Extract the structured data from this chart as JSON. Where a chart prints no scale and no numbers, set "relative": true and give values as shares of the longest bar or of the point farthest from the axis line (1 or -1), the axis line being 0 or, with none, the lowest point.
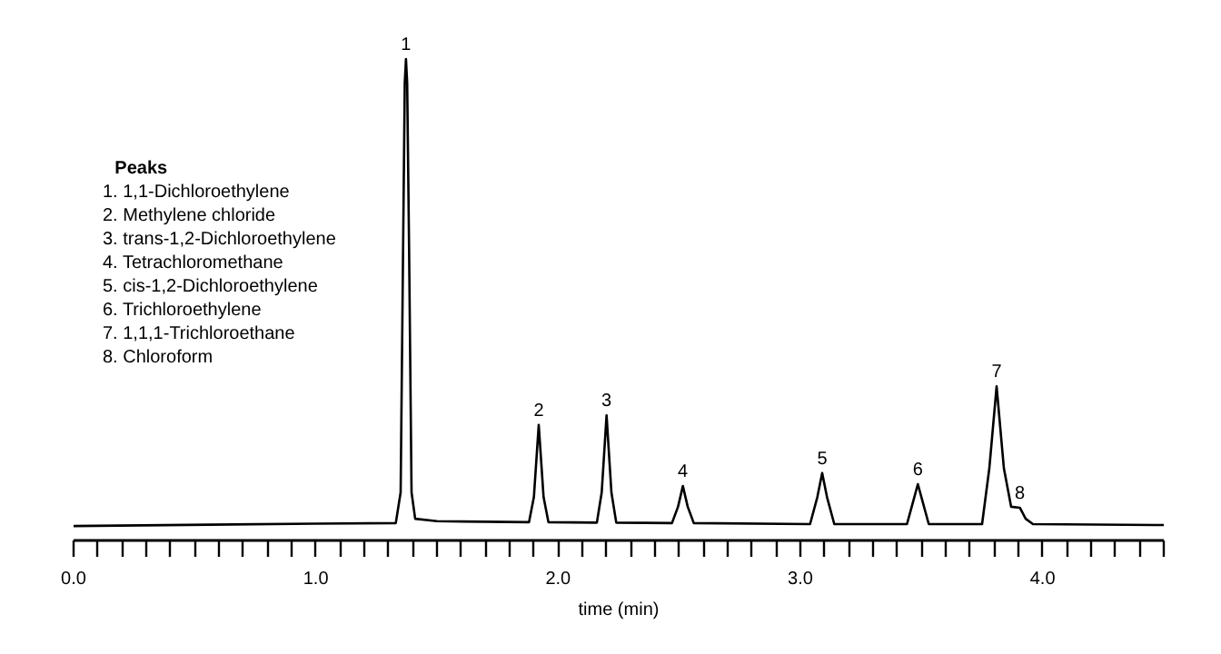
{
  "chart_data": {
    "type": "line",
    "relative": true,
    "xlabel": "time (min)",
    "legend_title": "Peaks",
    "xlim": [
      0,
      4.5
    ],
    "xticks": [
      {
        "value": 0.0,
        "label": "0.0"
      },
      {
        "value": 0.1,
        "label": null
      },
      {
        "value": 0.2,
        "label": null
      },
      {
        "value": 0.3,
        "label": null
      },
      {
        "value": 0.4,
        "label": null
      },
      {
        "value": 0.5,
        "label": null
      },
      {
        "value": 0.6,
        "label": null
      },
      {
        "value": 0.7,
        "label": null
      },
      {
        "value": 0.8,
        "label": null
      },
      {
        "value": 0.9,
        "label": null
      },
      {
        "value": 1.0,
        "label": "1.0"
      },
      {
        "value": 1.1,
        "label": null
      },
      {
        "value": 1.2,
        "label": null
      },
      {
        "value": 1.3,
        "label": null
      },
      {
        "value": 1.4,
        "label": null
      },
      {
        "value": 1.5,
        "label": null
      },
      {
        "value": 1.6,
        "label": null
      },
      {
        "value": 1.7,
        "label": null
      },
      {
        "value": 1.8,
        "label": null
      },
      {
        "value": 1.9,
        "label": null
      },
      {
        "value": 2.0,
        "label": "2.0"
      },
      {
        "value": 2.1,
        "label": null
      },
      {
        "value": 2.2,
        "label": null
      },
      {
        "value": 2.3,
        "label": null
      },
      {
        "value": 2.4,
        "label": null
      },
      {
        "value": 2.5,
        "label": null
      },
      {
        "value": 2.6,
        "label": null
      },
      {
        "value": 2.7,
        "label": null
      },
      {
        "value": 2.8,
        "label": null
      },
      {
        "value": 2.9,
        "label": null
      },
      {
        "value": 3.0,
        "label": "3.0"
      },
      {
        "value": 3.1,
        "label": null
      },
      {
        "value": 3.2,
        "label": null
      },
      {
        "value": 3.3,
        "label": null
      },
      {
        "value": 3.4,
        "label": null
      },
      {
        "value": 3.5,
        "label": null
      },
      {
        "value": 3.6,
        "label": null
      },
      {
        "value": 3.7,
        "label": null
      },
      {
        "value": 3.8,
        "label": null
      },
      {
        "value": 3.9,
        "label": null
      },
      {
        "value": 4.0,
        "label": "4.0"
      },
      {
        "value": 4.1,
        "label": null
      },
      {
        "value": 4.2,
        "label": null
      },
      {
        "value": 4.3,
        "label": null
      },
      {
        "value": 4.4,
        "label": null
      },
      {
        "value": 4.5,
        "label": null
      }
    ],
    "grid": false,
    "marker": "none",
    "line_style": "solid",
    "x": [
      0.0,
      1.0,
      1.33,
      1.35,
      1.36,
      1.367,
      1.372,
      1.377,
      1.385,
      1.395,
      1.41,
      1.5,
      1.88,
      1.9,
      1.92,
      1.94,
      1.96,
      2.16,
      2.18,
      2.2,
      2.22,
      2.24,
      2.47,
      2.495,
      2.515,
      2.535,
      2.56,
      3.04,
      3.07,
      3.09,
      3.11,
      3.14,
      3.44,
      3.465,
      3.485,
      3.505,
      3.53,
      3.75,
      3.78,
      3.81,
      3.84,
      3.87,
      3.906,
      3.93,
      3.96,
      4.5
    ],
    "series": [
      {
        "color": "#000000",
        "values": [
          0.03,
          0.035,
          0.036,
          0.1,
          0.6,
          0.95,
          1.0,
          0.95,
          0.6,
          0.1,
          0.045,
          0.04,
          0.038,
          0.09,
          0.24,
          0.09,
          0.038,
          0.037,
          0.1,
          0.26,
          0.1,
          0.037,
          0.036,
          0.07,
          0.113,
          0.07,
          0.036,
          0.034,
          0.09,
          0.14,
          0.09,
          0.034,
          0.034,
          0.08,
          0.117,
          0.08,
          0.034,
          0.034,
          0.15,
          0.32,
          0.15,
          0.07,
          0.068,
          0.045,
          0.034,
          0.032
        ]
      }
    ],
    "annotations": [
      "1. 1,1-Dichloroethylene",
      "2. Methylene chloride",
      "3. trans-1,2-Dichloroethylene",
      "4. Tetrachloromethane",
      "5. cis-1,2-Dichloroethylene",
      "6. Trichloroethylene",
      "7. 1,1,1-Trichloroethane",
      "8. Chloroform",
      {
        "text": "1",
        "x": 1.372,
        "y": 1.0
      },
      {
        "text": "2",
        "x": 1.92,
        "y": 0.24
      },
      {
        "text": "3",
        "x": 2.2,
        "y": 0.26
      },
      {
        "text": "4",
        "x": 2.515,
        "y": 0.113
      },
      {
        "text": "5",
        "x": 3.09,
        "y": 0.14
      },
      {
        "text": "6",
        "x": 3.485,
        "y": 0.117
      },
      {
        "text": "7",
        "x": 3.81,
        "y": 0.32
      },
      {
        "text": "8",
        "x": 3.906,
        "y": 0.068
      }
    ]
  }
}
